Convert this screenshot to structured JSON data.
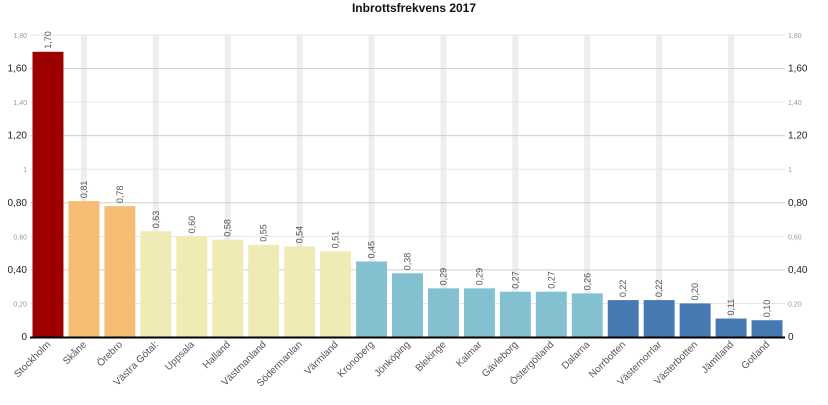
{
  "chart_data": {
    "type": "bar",
    "title": "Inbrottsfrekvens 2017",
    "xlabel": "",
    "ylabel": "",
    "ylim": [
      0,
      1.8
    ],
    "grid": true,
    "legend": "none",
    "y_ticks": [
      {
        "value": 0,
        "label": "0",
        "major": true
      },
      {
        "value": 0.2,
        "label": "0,20",
        "major": false
      },
      {
        "value": 0.4,
        "label": "0,40",
        "major": true
      },
      {
        "value": 0.6,
        "label": "0,60",
        "major": false
      },
      {
        "value": 0.8,
        "label": "0,80",
        "major": true
      },
      {
        "value": 1.0,
        "label": "1",
        "major": false
      },
      {
        "value": 1.2,
        "label": "1,20",
        "major": true
      },
      {
        "value": 1.4,
        "label": "1,40",
        "major": false
      },
      {
        "value": 1.6,
        "label": "1,60",
        "major": true
      },
      {
        "value": 1.8,
        "label": "1,80",
        "major": false
      }
    ],
    "categories": [
      "Stockholm",
      "Skåne",
      "Örebro",
      "Västra Götal:",
      "Uppsala",
      "Halland",
      "Västmanland",
      "Södermanlan",
      "Värmland",
      "Kronoberg",
      "Jönköping",
      "Blekinge",
      "Kalmar",
      "Gävleborg",
      "Östergötland",
      "Dalarna",
      "Norrbotten",
      "Västernorrlar",
      "Västerbotten",
      "Jämtland",
      "Gotland"
    ],
    "values": [
      1.7,
      0.81,
      0.78,
      0.63,
      0.6,
      0.58,
      0.55,
      0.54,
      0.51,
      0.45,
      0.38,
      0.29,
      0.29,
      0.27,
      0.27,
      0.26,
      0.22,
      0.22,
      0.2,
      0.11,
      0.1
    ],
    "value_labels": [
      "1,70",
      "0,81",
      "0,78",
      "0,63",
      "0,60",
      "0,58",
      "0,55",
      "0,54",
      "0,51",
      "0,45",
      "0,38",
      "0,29",
      "0,29",
      "0,27",
      "0,27",
      "0,26",
      "0,22",
      "0,22",
      "0,20",
      "0,11",
      "0,10"
    ],
    "colors": [
      "#9e0000",
      "#f5bd73",
      "#f5bd73",
      "#f0ebb5",
      "#f0ebb5",
      "#f0ebb5",
      "#f0ebb5",
      "#f0ebb5",
      "#f0ebb5",
      "#84c1d0",
      "#84c1d0",
      "#84c1d0",
      "#84c1d0",
      "#84c1d0",
      "#84c1d0",
      "#84c1d0",
      "#4679b2",
      "#4679b2",
      "#4679b2",
      "#4679b2",
      "#4679b2"
    ]
  }
}
